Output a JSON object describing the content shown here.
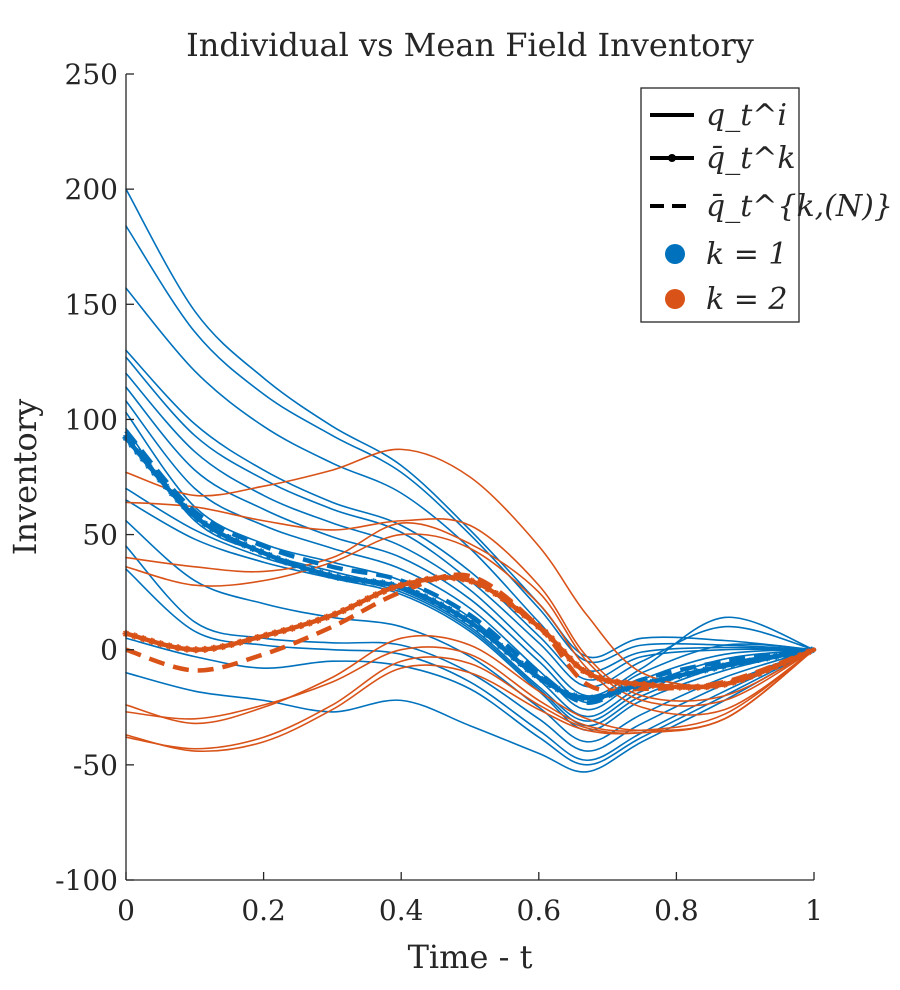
{
  "chart_data": {
    "type": "line",
    "title": "Individual vs Mean Field Inventory",
    "xlabel": "Time - t",
    "ylabel": "Inventory",
    "xlim": [
      0,
      1
    ],
    "ylim": [
      -100,
      250
    ],
    "xticks": [
      0,
      0.2,
      0.4,
      0.6,
      0.8,
      1
    ],
    "xtick_labels": [
      "0",
      "0.2",
      "0.4",
      "0.6",
      "0.8",
      "1"
    ],
    "yticks": [
      -100,
      -50,
      0,
      50,
      100,
      150,
      200,
      250
    ],
    "ytick_labels": [
      "-100",
      "-50",
      "0",
      "50",
      "100",
      "150",
      "200",
      "250"
    ],
    "legend": {
      "position": "top-right",
      "entries": [
        {
          "style": "solid",
          "label": "q_t^i"
        },
        {
          "style": "solid-marker",
          "label": "q̄_t^k"
        },
        {
          "style": "dashed",
          "label": "q̄_t^{k,(N)}"
        },
        {
          "style": "dot",
          "color": "#0072BD",
          "label": "k = 1"
        },
        {
          "style": "dot",
          "color": "#D95319",
          "label": "k = 2"
        }
      ]
    },
    "colors": {
      "k1": "#0072BD",
      "k2": "#D95319"
    },
    "x": [
      0,
      0.1,
      0.2,
      0.3,
      0.4,
      0.5,
      0.6,
      0.67,
      0.75,
      0.87,
      1.0
    ],
    "series": [
      {
        "name": "q_t^i (k=1)",
        "group": "k1",
        "style": "thin",
        "values": [
          200,
          147,
          118,
          97,
          80,
          52,
          20,
          -3,
          5,
          4,
          0
        ]
      },
      {
        "name": "q_t^i (k=1)",
        "group": "k1",
        "style": "thin",
        "values": [
          184,
          138,
          111,
          93,
          77,
          50,
          18,
          -5,
          2,
          2,
          0
        ]
      },
      {
        "name": "q_t^i (k=1)",
        "group": "k1",
        "style": "thin",
        "values": [
          157,
          121,
          97,
          81,
          68,
          44,
          12,
          -9,
          -1,
          1,
          0
        ]
      },
      {
        "name": "q_t^i (k=1)",
        "group": "k1",
        "style": "thin",
        "values": [
          130,
          98,
          78,
          64,
          54,
          34,
          6,
          -13,
          -3,
          0,
          0
        ]
      },
      {
        "name": "q_t^i (k=1)",
        "group": "k1",
        "style": "thin",
        "values": [
          127,
          93,
          74,
          61,
          51,
          30,
          3,
          -16,
          -5,
          10,
          0
        ]
      },
      {
        "name": "q_t^i (k=1)",
        "group": "k1",
        "style": "thin",
        "values": [
          120,
          86,
          67,
          55,
          45,
          26,
          -2,
          -20,
          -8,
          14,
          0
        ]
      },
      {
        "name": "q_t^i (k=1)",
        "group": "k1",
        "style": "thin",
        "values": [
          114,
          78,
          61,
          49,
          40,
          22,
          -5,
          -23,
          -10,
          2,
          0
        ]
      },
      {
        "name": "q_t^i (k=1)",
        "group": "k1",
        "style": "thin",
        "values": [
          108,
          70,
          54,
          44,
          35,
          18,
          -9,
          -26,
          -13,
          -2,
          0
        ]
      },
      {
        "name": "q_t^i (k=1)",
        "group": "k1",
        "style": "thin",
        "values": [
          103,
          62,
          46,
          38,
          30,
          14,
          -13,
          -29,
          -16,
          -4,
          0
        ]
      },
      {
        "name": "q_t^i (k=1)",
        "group": "k1",
        "style": "thin",
        "values": [
          96,
          56,
          42,
          34,
          26,
          10,
          -16,
          -31,
          -18,
          -6,
          0
        ]
      },
      {
        "name": "q_t^i (k=1)",
        "group": "k1",
        "style": "thin",
        "values": [
          70,
          52,
          40,
          32,
          25,
          9,
          -17,
          -33,
          -20,
          -7,
          0
        ]
      },
      {
        "name": "q_t^i (k=1)",
        "group": "k1",
        "style": "thin",
        "values": [
          65,
          48,
          38,
          31,
          24,
          8,
          -18,
          -35,
          -22,
          -9,
          0
        ]
      },
      {
        "name": "q_t^i (k=1)",
        "group": "k1",
        "style": "thin",
        "values": [
          56,
          30,
          20,
          14,
          10,
          -3,
          -25,
          -40,
          -28,
          -12,
          0
        ]
      },
      {
        "name": "q_t^i (k=1)",
        "group": "k1",
        "style": "thin",
        "values": [
          45,
          12,
          5,
          3,
          2,
          -10,
          -30,
          -44,
          -32,
          -15,
          0
        ]
      },
      {
        "name": "q_t^i (k=1)",
        "group": "k1",
        "style": "thin",
        "values": [
          35,
          8,
          2,
          0,
          -2,
          -14,
          -35,
          -48,
          -36,
          -18,
          0
        ]
      },
      {
        "name": "q_t^i (k=1)",
        "group": "k1",
        "style": "thin",
        "values": [
          5,
          -3,
          -8,
          -5,
          -7,
          -17,
          -38,
          -50,
          -38,
          -20,
          0
        ]
      },
      {
        "name": "q_t^i (k=1)",
        "group": "k1",
        "style": "thin",
        "values": [
          -10,
          -18,
          -22,
          -27,
          -22,
          -33,
          -45,
          -53,
          -40,
          -22,
          0
        ]
      },
      {
        "name": "q_t^i (k=2)",
        "group": "k2",
        "style": "thin",
        "values": [
          77,
          67,
          71,
          78,
          87,
          75,
          45,
          15,
          -10,
          -15,
          0
        ]
      },
      {
        "name": "q_t^i (k=2)",
        "group": "k2",
        "style": "thin",
        "values": [
          64,
          62,
          56,
          52,
          56,
          54,
          28,
          -3,
          -20,
          -20,
          0
        ]
      },
      {
        "name": "q_t^i (k=2)",
        "group": "k2",
        "style": "thin",
        "values": [
          40,
          36,
          34,
          40,
          55,
          46,
          25,
          -5,
          -22,
          -22,
          0
        ]
      },
      {
        "name": "q_t^i (k=2)",
        "group": "k2",
        "style": "thin",
        "values": [
          36,
          28,
          30,
          38,
          50,
          44,
          20,
          -8,
          -25,
          -26,
          0
        ]
      },
      {
        "name": "q_t^i (k=2)",
        "group": "k2",
        "style": "thin",
        "values": [
          -24,
          -32,
          -25,
          -12,
          5,
          2,
          -18,
          -30,
          -35,
          -30,
          0
        ]
      },
      {
        "name": "q_t^i (k=2)",
        "group": "k2",
        "style": "thin",
        "values": [
          -27,
          -30,
          -24,
          -14,
          0,
          -2,
          -22,
          -33,
          -35,
          -28,
          0
        ]
      },
      {
        "name": "q_t^i (k=2)",
        "group": "k2",
        "style": "thin",
        "values": [
          -38,
          -43,
          -38,
          -24,
          -5,
          -6,
          -24,
          -34,
          -36,
          -30,
          0
        ]
      },
      {
        "name": "q_t^i (k=2)",
        "group": "k2",
        "style": "thin",
        "values": [
          -37,
          -44,
          -40,
          -26,
          -8,
          -10,
          -26,
          -35,
          -36,
          -30,
          0
        ]
      },
      {
        "name": "q̄_t^k (k=1)",
        "group": "k1",
        "style": "marker",
        "values": [
          92,
          58,
          42,
          32,
          27,
          12,
          -12,
          -21,
          -15,
          -7,
          0
        ]
      },
      {
        "name": "q̄_t^{k,(N)} (k=1)",
        "group": "k1",
        "style": "dashed",
        "values": [
          95,
          60,
          45,
          36,
          30,
          15,
          -10,
          -23,
          -13,
          -5,
          0
        ]
      },
      {
        "name": "q̄_t^k (k=2)",
        "group": "k2",
        "style": "marker",
        "values": [
          7,
          0,
          6,
          15,
          28,
          30,
          10,
          -10,
          -15,
          -15,
          0
        ]
      },
      {
        "name": "q̄_t^{k,(N)} (k=2)",
        "group": "k2",
        "style": "dashed",
        "values": [
          0,
          -9,
          -2,
          10,
          25,
          32,
          10,
          -15,
          -17,
          -14,
          0
        ]
      }
    ]
  }
}
